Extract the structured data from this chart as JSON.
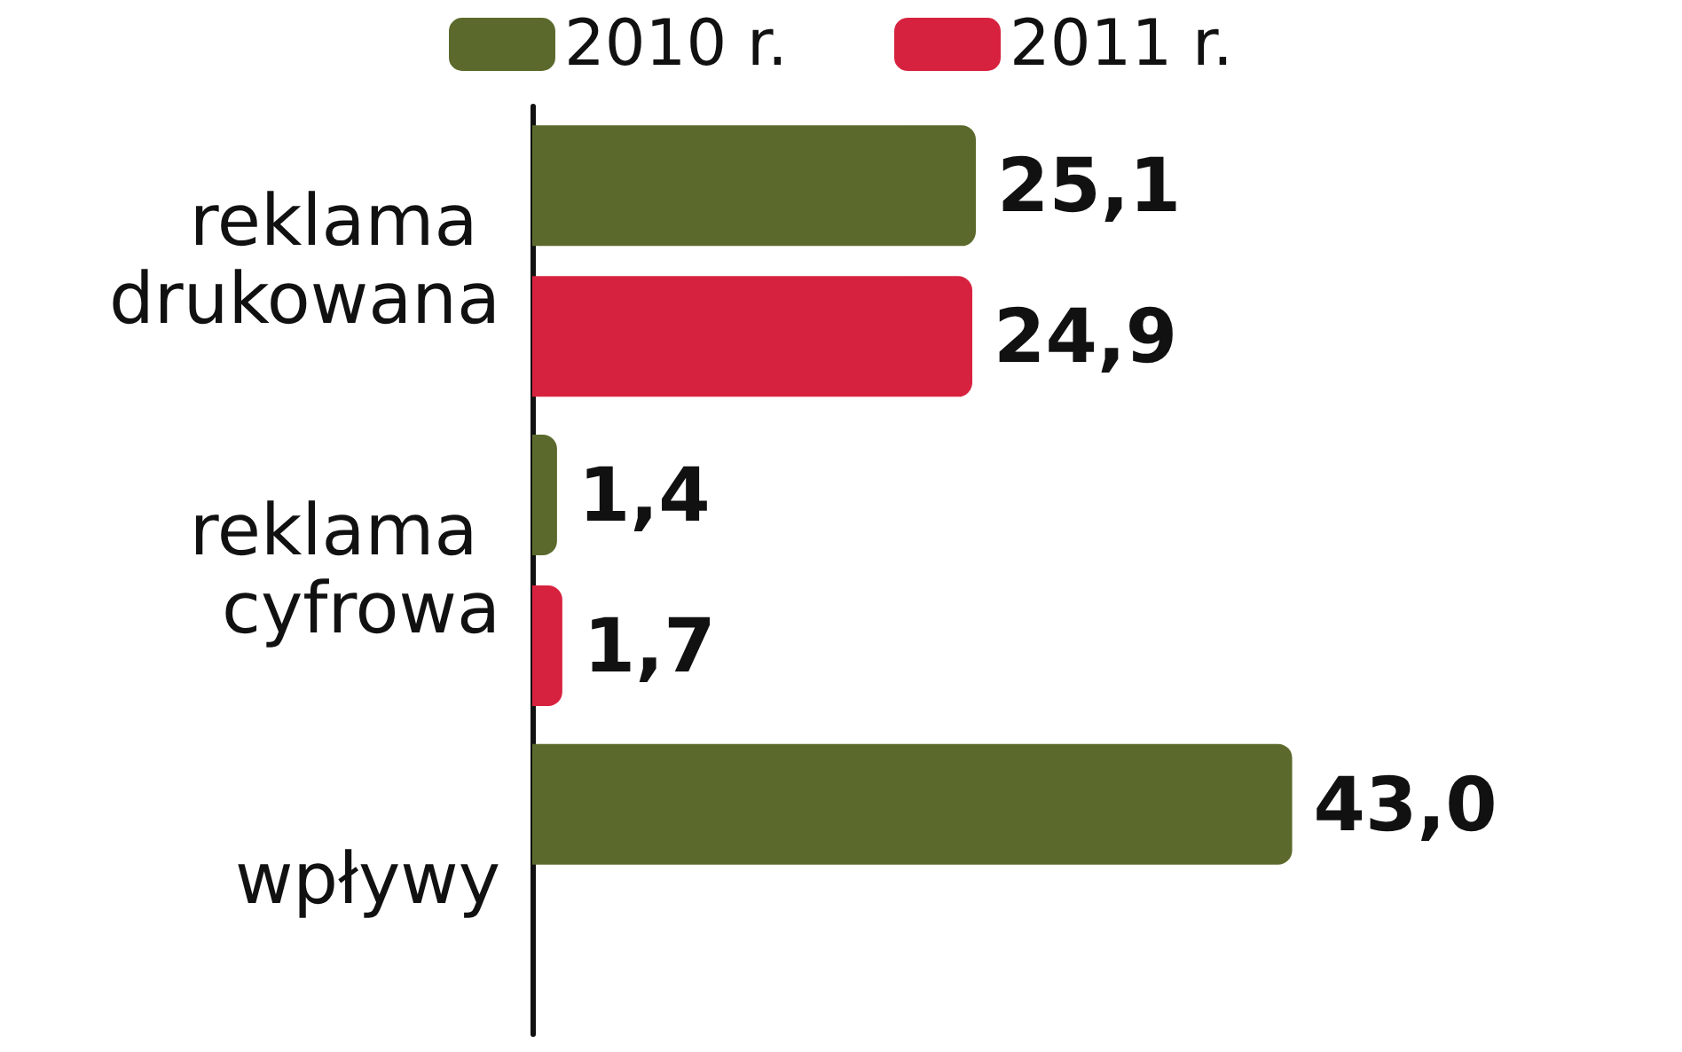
{
  "chart_data": {
    "type": "bar",
    "orientation": "horizontal",
    "categories": [
      "reklama drukowana",
      "reklama cyfrowa",
      "wpływy"
    ],
    "series": [
      {
        "name": "2010 r.",
        "color": "#5b6a2c",
        "values": [
          25.1,
          1.4,
          43.0
        ],
        "value_labels": [
          "25,1",
          "1,4",
          "43,0"
        ]
      },
      {
        "name": "2011 r.",
        "color": "#d7223f",
        "values": [
          24.9,
          1.7,
          null
        ],
        "value_labels": [
          "24,9",
          "1,7",
          null
        ]
      }
    ],
    "legend": "top"
  }
}
